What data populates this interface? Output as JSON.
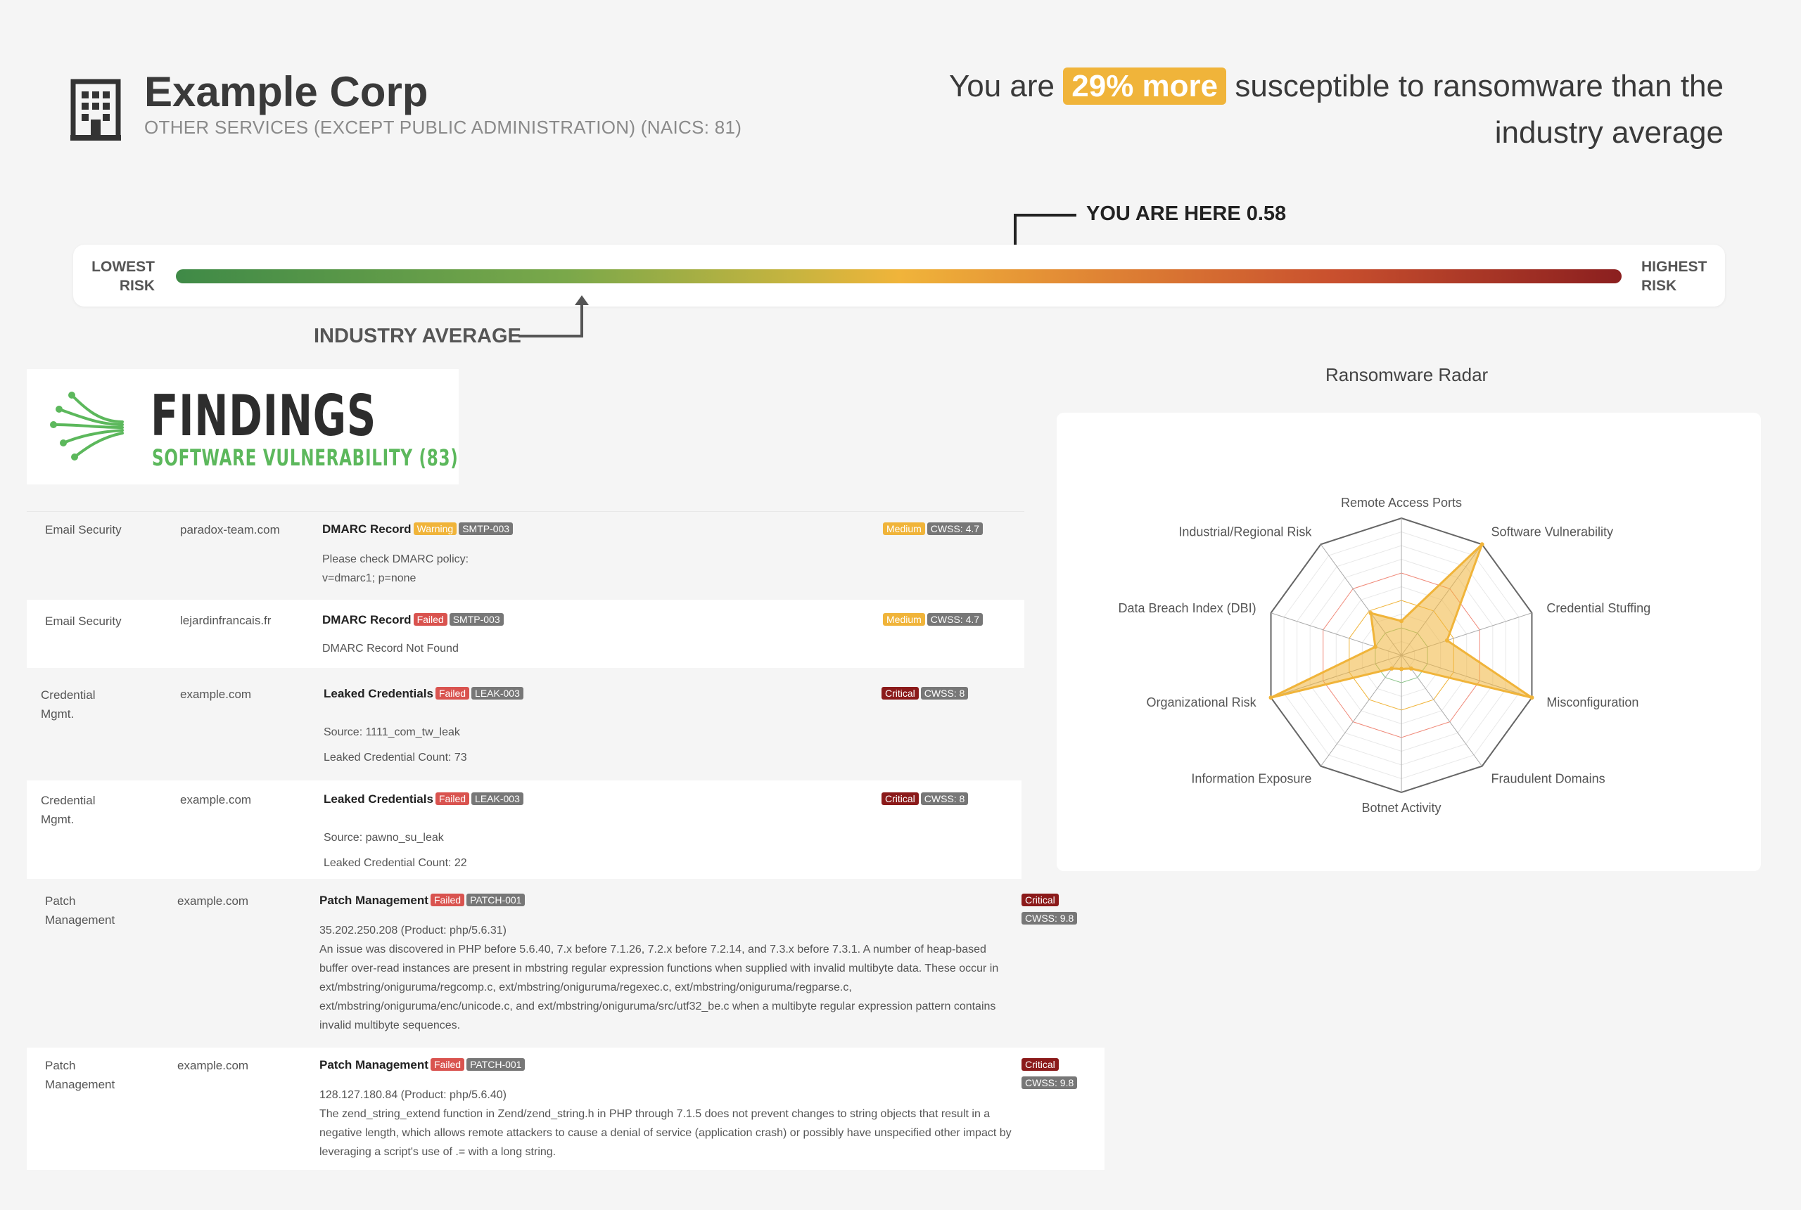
{
  "company": {
    "name": "Example Corp",
    "sector": "OTHER SERVICES (EXCEPT PUBLIC ADMINISTRATION) (NAICS: 81)"
  },
  "headline": {
    "prefix": "You are",
    "highlight": "29% more",
    "suffix": "susceptible to ransomware than the industry average"
  },
  "risk_scale": {
    "low_label_1": "LOWEST",
    "low_label_2": "RISK",
    "high_label_1": "HIGHEST",
    "high_label_2": "RISK",
    "you_are_here": "YOU ARE HERE 0.58",
    "your_score": 0.58,
    "industry_average_label": "INDUSTRY AVERAGE",
    "industry_average_position": 0.28
  },
  "findings": {
    "title": "FINDINGS",
    "subtitle": "SOFTWARE VULNERABILITY (83)",
    "rows": [
      {
        "category": "Email Security",
        "domain": "paradox-team.com",
        "title": "DMARC Record",
        "status": "Warning",
        "code": "SMTP-003",
        "details": [
          "Please check DMARC policy:",
          "v=dmarc1; p=none"
        ],
        "severity": "Medium",
        "cwss": "CWSS: 4.7"
      },
      {
        "category": "Email Security",
        "domain": "lejardinfrancais.fr",
        "title": "DMARC Record",
        "status": "Failed",
        "code": "SMTP-003",
        "details": [
          "DMARC Record Not Found"
        ],
        "severity": "Medium",
        "cwss": "CWSS: 4.7"
      },
      {
        "category": "Credential Mgmt.",
        "domain": "example.com",
        "title": "Leaked Credentials",
        "status": "Failed",
        "code": "LEAK-003",
        "details": [
          "Source: 1111_com_tw_leak",
          "Leaked Credential Count: 73"
        ],
        "severity": "Critical",
        "cwss": "CWSS: 8"
      },
      {
        "category": "Credential Mgmt.",
        "domain": "example.com",
        "title": "Leaked Credentials",
        "status": "Failed",
        "code": "LEAK-003",
        "details": [
          "Source: pawno_su_leak",
          "Leaked Credential Count: 22"
        ],
        "severity": "Critical",
        "cwss": "CWSS: 8"
      },
      {
        "category": "Patch Management",
        "domain": "example.com",
        "title": "Patch Management",
        "status": "Failed",
        "code": "PATCH-001",
        "details": [
          "35.202.250.208 (Product: php/5.6.31)",
          "An issue was discovered in PHP before 5.6.40, 7.x before 7.1.26, 7.2.x before 7.2.14, and 7.3.x before 7.3.1. A number of heap-based buffer over-read instances are present in mbstring regular expression functions when supplied with invalid multibyte data. These occur in ext/mbstring/oniguruma/regcomp.c, ext/mbstring/oniguruma/regexec.c, ext/mbstring/oniguruma/regparse.c, ext/mbstring/oniguruma/enc/unicode.c, and ext/mbstring/oniguruma/src/utf32_be.c when a multibyte regular expression pattern contains invalid multibyte sequences."
        ],
        "severity": "Critical",
        "cwss": "CWSS: 9.8"
      },
      {
        "category": "Patch Management",
        "domain": "example.com",
        "title": "Patch Management",
        "status": "Failed",
        "code": "PATCH-001",
        "details": [
          "128.127.180.84 (Product: php/5.6.40)",
          "The zend_string_extend function in Zend/zend_string.h in PHP through 7.1.5 does not prevent changes to string objects that result in a negative length, which allows remote attackers to cause a denial of service (application crash) or possibly have unspecified other impact by leveraging a script's use of .= with a long string."
        ],
        "severity": "Critical",
        "cwss": "CWSS: 9.8"
      }
    ]
  },
  "radar": {
    "title": "Ransomware Radar",
    "axes": [
      "Remote Access Ports",
      "Software Vulnerability",
      "Credential Stuffing",
      "Misconfiguration",
      "Fraudulent Domains",
      "Botnet Activity",
      "Information Exposure",
      "Organizational Risk",
      "Data Breach Index (DBI)",
      "Industrial/Regional Risk"
    ],
    "values": [
      0.25,
      1.0,
      0.35,
      1.0,
      0.12,
      0.1,
      0.12,
      1.0,
      0.2,
      0.38
    ],
    "fill_color": "#f0b43a"
  }
}
